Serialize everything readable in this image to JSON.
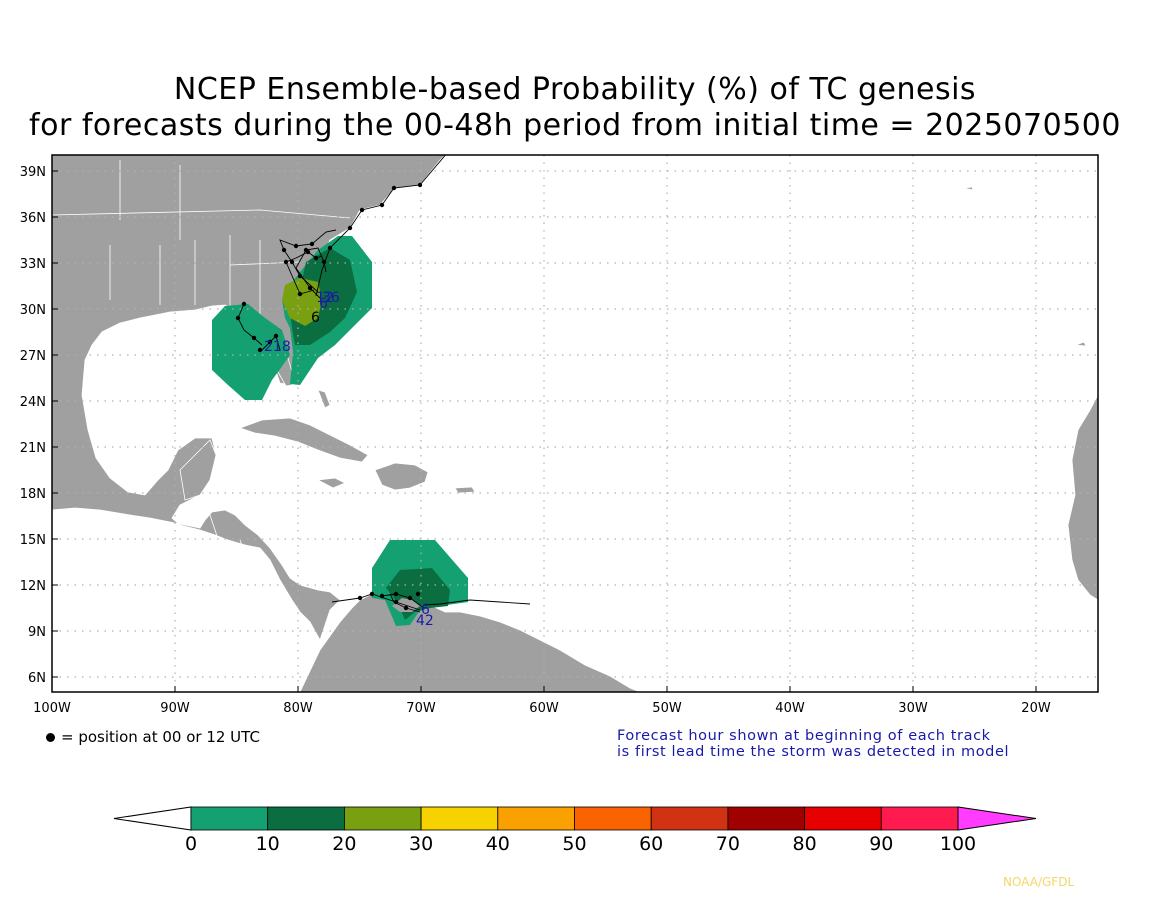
{
  "title": {
    "line1": "NCEP Ensemble-based Probability (%) of TC genesis",
    "line2": "for forecasts during the 00-48h period from initial time = 2025070500"
  },
  "map": {
    "lat_labels": [
      "39N",
      "36N",
      "33N",
      "30N",
      "27N",
      "24N",
      "21N",
      "18N",
      "15N",
      "12N",
      "9N",
      "6N"
    ],
    "lon_labels": [
      "100W",
      "90W",
      "80W",
      "70W",
      "60W",
      "50W",
      "40W",
      "30W",
      "20W"
    ],
    "ocean_color": "#ffffff",
    "land_color": "#a0a0a0",
    "storm_labels": [
      {
        "text": "6",
        "color": "#000000"
      },
      {
        "text": "12",
        "color": "#1a1aa8"
      },
      {
        "text": "36",
        "color": "#1a1aa8"
      },
      {
        "text": "6",
        "color": "#1a1aa8"
      },
      {
        "text": "218",
        "color": "#1a1aa8"
      },
      {
        "text": "6",
        "color": "#1a1aa8"
      },
      {
        "text": "42",
        "color": "#1a1aa8"
      }
    ]
  },
  "legend": {
    "dot_text": "= position at 00 or 12 UTC",
    "note_line1": "Forecast hour shown at beginning of each track",
    "note_line2": "is first lead time the storm was detected in model"
  },
  "colorbar": {
    "labels": [
      "0",
      "10",
      "20",
      "30",
      "40",
      "50",
      "60",
      "70",
      "80",
      "90",
      "100"
    ],
    "colors": [
      "#14a070",
      "#0a6e40",
      "#78a010",
      "#f5d200",
      "#faa000",
      "#fa6400",
      "#d23214",
      "#a00000",
      "#e60000",
      "#ff1a50"
    ],
    "under_color": "#ffffff",
    "over_color": "#ff3cff"
  },
  "credit": "NOAA/GFDL"
}
